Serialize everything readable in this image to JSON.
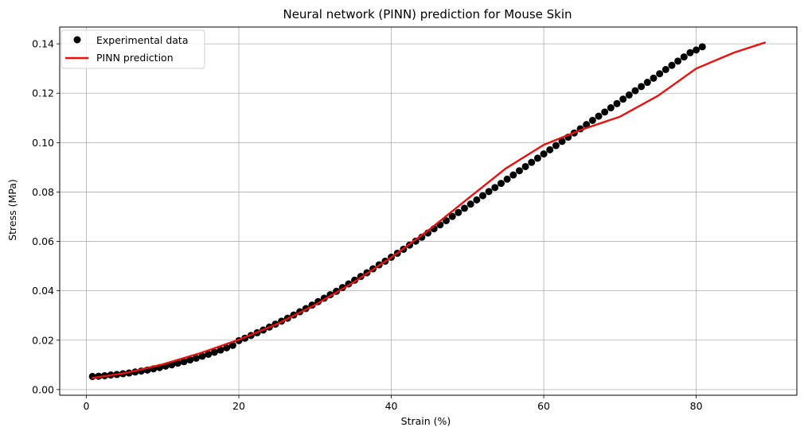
{
  "chart_data": {
    "type": "line",
    "title": "Neural network (PINN) prediction for Mouse Skin",
    "xlabel": "Strain (%)",
    "ylabel": "Stress (MPa)",
    "xlim": [
      -3.5,
      93.2
    ],
    "ylim": [
      -0.0023,
      0.1468
    ],
    "xticks": [
      0,
      20,
      40,
      60,
      80
    ],
    "xtick_labels": [
      "0",
      "20",
      "40",
      "60",
      "80"
    ],
    "yticks": [
      0.0,
      0.02,
      0.04,
      0.06,
      0.08,
      0.1,
      0.12,
      0.14
    ],
    "ytick_labels": [
      "0.00",
      "0.02",
      "0.04",
      "0.06",
      "0.08",
      "0.10",
      "0.12",
      "0.14"
    ],
    "grid": true,
    "legend": {
      "placement": "top-left"
    },
    "series": [
      {
        "name": "Experimental data",
        "kind": "scatter",
        "color": "#000000",
        "x": [
          0.8,
          1.6,
          2.4,
          3.2,
          4.0,
          4.8,
          5.6,
          6.4,
          7.2,
          8.0,
          8.8,
          9.6,
          10.4,
          11.2,
          12.0,
          12.8,
          13.6,
          14.4,
          15.2,
          16.0,
          16.8,
          17.6,
          18.4,
          19.2,
          20.0,
          20.8,
          21.6,
          22.4,
          23.2,
          24.0,
          24.8,
          25.6,
          26.4,
          27.2,
          28.0,
          28.8,
          29.6,
          30.4,
          31.2,
          32.0,
          32.8,
          33.6,
          34.4,
          35.2,
          36.0,
          36.8,
          37.6,
          38.4,
          39.2,
          40.0,
          40.8,
          41.6,
          42.4,
          43.2,
          44.0,
          44.8,
          45.6,
          46.4,
          47.2,
          48.0,
          48.8,
          49.6,
          50.4,
          51.2,
          52.0,
          52.8,
          53.6,
          54.4,
          55.2,
          56.0,
          56.8,
          57.6,
          58.4,
          59.2,
          60.0,
          60.8,
          61.6,
          62.4,
          63.2,
          64.0,
          64.8,
          65.6,
          66.4,
          67.2,
          68.0,
          68.8,
          69.6,
          70.4,
          71.2,
          72.0,
          72.8,
          73.6,
          74.4,
          75.2,
          76.0,
          76.8,
          77.6,
          78.4,
          79.2,
          80.0,
          80.8
        ],
        "y": [
          0.0053,
          0.0054,
          0.0056,
          0.0059,
          0.0061,
          0.0064,
          0.0067,
          0.0071,
          0.0075,
          0.0079,
          0.0084,
          0.0089,
          0.0095,
          0.01,
          0.0107,
          0.0113,
          0.012,
          0.0127,
          0.0135,
          0.0143,
          0.0151,
          0.016,
          0.0169,
          0.0179,
          0.0198,
          0.0208,
          0.0219,
          0.023,
          0.0241,
          0.0253,
          0.0265,
          0.0277,
          0.0289,
          0.0302,
          0.0315,
          0.0328,
          0.0342,
          0.0356,
          0.037,
          0.0384,
          0.0398,
          0.0413,
          0.0428,
          0.0443,
          0.0458,
          0.0473,
          0.0489,
          0.0505,
          0.052,
          0.0536,
          0.0552,
          0.0568,
          0.0585,
          0.0601,
          0.0617,
          0.0634,
          0.0651,
          0.0667,
          0.0684,
          0.0701,
          0.0717,
          0.0734,
          0.0751,
          0.0768,
          0.0785,
          0.0802,
          0.0818,
          0.0835,
          0.0852,
          0.0869,
          0.0886,
          0.0903,
          0.092,
          0.0937,
          0.0954,
          0.0971,
          0.0988,
          0.1005,
          0.1022,
          0.1039,
          0.1056,
          0.1073,
          0.109,
          0.1107,
          0.1124,
          0.1141,
          0.1158,
          0.1176,
          0.1193,
          0.121,
          0.1227,
          0.1244,
          0.1261,
          0.1279,
          0.1296,
          0.1313,
          0.133,
          0.1347,
          0.1364,
          0.1375,
          0.1388
        ]
      },
      {
        "name": "PINN prediction",
        "kind": "line",
        "color": "#e81010",
        "x": [
          0.8,
          5,
          10,
          15,
          20,
          25,
          30,
          35,
          40,
          45,
          50,
          55,
          60,
          65,
          70,
          75,
          80,
          85,
          89
        ],
        "y": [
          0.0047,
          0.0066,
          0.0102,
          0.0148,
          0.0202,
          0.0265,
          0.0343,
          0.0433,
          0.0535,
          0.0648,
          0.0772,
          0.0895,
          0.0991,
          0.1053,
          0.1105,
          0.119,
          0.13,
          0.1365,
          0.1405
        ]
      }
    ]
  }
}
